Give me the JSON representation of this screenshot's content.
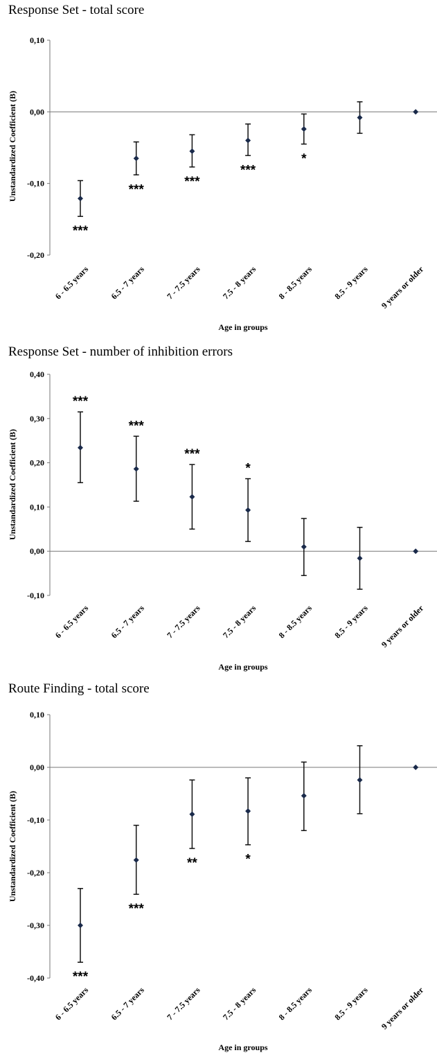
{
  "chart_data": [
    {
      "type": "scatter",
      "title": "Response Set - total score",
      "xlabel": "Age in groups",
      "ylabel": "Unstandardized  Coefficient (B)",
      "ylim": [
        -0.2,
        0.1
      ],
      "yticks": [
        "0,10",
        "0,00",
        "-0,10",
        "-0,20"
      ],
      "ytick_values": [
        0.1,
        0.0,
        -0.1,
        -0.2
      ],
      "categories": [
        "6 - 6.5 years",
        "6.5 - 7 years",
        "7 - 7.5 years",
        "7.5 - 8 years",
        "8 - 8.5 years",
        "8.5 - 9 years",
        "9 years or older"
      ],
      "values": [
        -0.121,
        -0.065,
        -0.055,
        -0.04,
        -0.024,
        -0.008,
        0.0
      ],
      "ci_low": [
        -0.146,
        -0.088,
        -0.077,
        -0.061,
        -0.045,
        -0.03,
        0.0
      ],
      "ci_high": [
        -0.096,
        -0.042,
        -0.032,
        -0.017,
        -0.003,
        0.014,
        0.0
      ],
      "significance": [
        "***",
        "***",
        "***",
        "***",
        "*",
        "",
        ""
      ],
      "sig_position": [
        "below",
        "below",
        "below",
        "below",
        "below",
        "",
        ""
      ],
      "grid": false,
      "legend": "none"
    },
    {
      "type": "scatter",
      "title": "Response Set - number of inhibition errors",
      "xlabel": "Age in groups",
      "ylabel": "Unstandardized  Coefficient (B)",
      "ylim": [
        -0.1,
        0.4
      ],
      "yticks": [
        "0,40",
        "0,30",
        "0,20",
        "0,10",
        "0,00",
        "-0,10"
      ],
      "ytick_values": [
        0.4,
        0.3,
        0.2,
        0.1,
        0.0,
        -0.1
      ],
      "categories": [
        "6 - 6.5 years",
        "6.5 - 7 years",
        "7 - 7.5 years",
        "7.5 - 8 years",
        "8 - 8.5 years",
        "8.5 - 9 years",
        "9 years or older"
      ],
      "values": [
        0.234,
        0.186,
        0.123,
        0.093,
        0.01,
        -0.016,
        0.0
      ],
      "ci_low": [
        0.155,
        0.113,
        0.05,
        0.022,
        -0.055,
        -0.086,
        0.0
      ],
      "ci_high": [
        0.315,
        0.26,
        0.196,
        0.164,
        0.074,
        0.054,
        0.0
      ],
      "significance": [
        "***",
        "***",
        "***",
        "*",
        "",
        "",
        ""
      ],
      "sig_position": [
        "above",
        "above",
        "above",
        "above",
        "",
        "",
        ""
      ],
      "grid": false,
      "legend": "none"
    },
    {
      "type": "scatter",
      "title": "Route Finding - total score",
      "xlabel": "Age in groups",
      "ylabel": "Unstandardized  Coefficient (B)",
      "ylim": [
        -0.4,
        0.1
      ],
      "yticks": [
        "0,10",
        "0,00",
        "-0,10",
        "-0,20",
        "-0,30",
        "-0,40"
      ],
      "ytick_values": [
        0.1,
        0.0,
        -0.1,
        -0.2,
        -0.3,
        -0.4
      ],
      "categories": [
        "6 - 6.5 years",
        "6.5 - 7 years",
        "7 - 7.5 years",
        "7.5 - 8 years",
        "8 - 8.5 years",
        "8.5 - 9 years",
        "9 years or older"
      ],
      "values": [
        -0.3,
        -0.176,
        -0.089,
        -0.083,
        -0.054,
        -0.024,
        0.0
      ],
      "ci_low": [
        -0.37,
        -0.241,
        -0.154,
        -0.147,
        -0.12,
        -0.088,
        0.0
      ],
      "ci_high": [
        -0.23,
        -0.11,
        -0.024,
        -0.02,
        0.01,
        0.041,
        0.0
      ],
      "significance": [
        "***",
        "***",
        "**",
        "*",
        "",
        "",
        ""
      ],
      "sig_position": [
        "below",
        "below",
        "below",
        "below",
        "",
        "",
        ""
      ],
      "grid": false,
      "legend": "none"
    }
  ]
}
